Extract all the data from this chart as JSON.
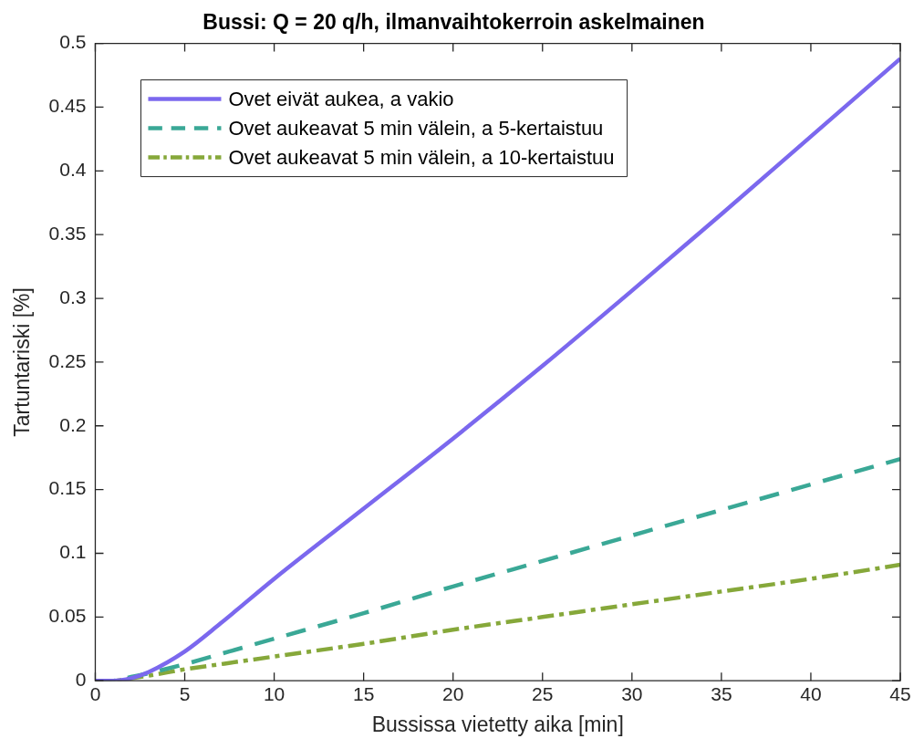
{
  "chart_data": {
    "type": "line",
    "title": "Bussi: Q = 20 q/h, ilmanvaihtokerroin askelmainen",
    "xlabel": "Bussissa vietetty aika [min]",
    "ylabel": "Tartuntariski [%]",
    "x": [
      0,
      1,
      2,
      3,
      5,
      7,
      10,
      15,
      20,
      25,
      30,
      35,
      40,
      45
    ],
    "series": [
      {
        "name": "Ovet eivät aukea, a vakio",
        "color": "#7b68ee",
        "line_style": "solid",
        "values": [
          0,
          0,
          0.002,
          0.007,
          0.023,
          0.045,
          0.08,
          0.135,
          0.19,
          0.247,
          0.306,
          0.366,
          0.427,
          0.488
        ]
      },
      {
        "name": "Ovet aukeavat 5 min välein, a 5-kertaistuu",
        "color": "#3aa896",
        "line_style": "dashed",
        "values": [
          0,
          0,
          0.003,
          0.006,
          0.013,
          0.021,
          0.033,
          0.053,
          0.074,
          0.094,
          0.114,
          0.134,
          0.154,
          0.174
        ]
      },
      {
        "name": "Ovet aukeavat 5 min välein, a 10-kertaistuu",
        "color": "#86a83a",
        "line_style": "dotted",
        "values": [
          0,
          0,
          0.002,
          0.004,
          0.009,
          0.013,
          0.019,
          0.029,
          0.04,
          0.05,
          0.06,
          0.07,
          0.08,
          0.091
        ]
      }
    ],
    "xlim": [
      0,
      45
    ],
    "xticks": [
      0,
      5,
      10,
      15,
      20,
      25,
      30,
      35,
      40,
      45
    ],
    "ylim": [
      0,
      0.5
    ],
    "yticks": [
      0,
      0.05,
      0.1,
      0.15,
      0.2,
      0.25,
      0.3,
      0.35,
      0.4,
      0.45,
      0.5
    ],
    "grid": false,
    "legend": "top left",
    "marker": "none"
  }
}
